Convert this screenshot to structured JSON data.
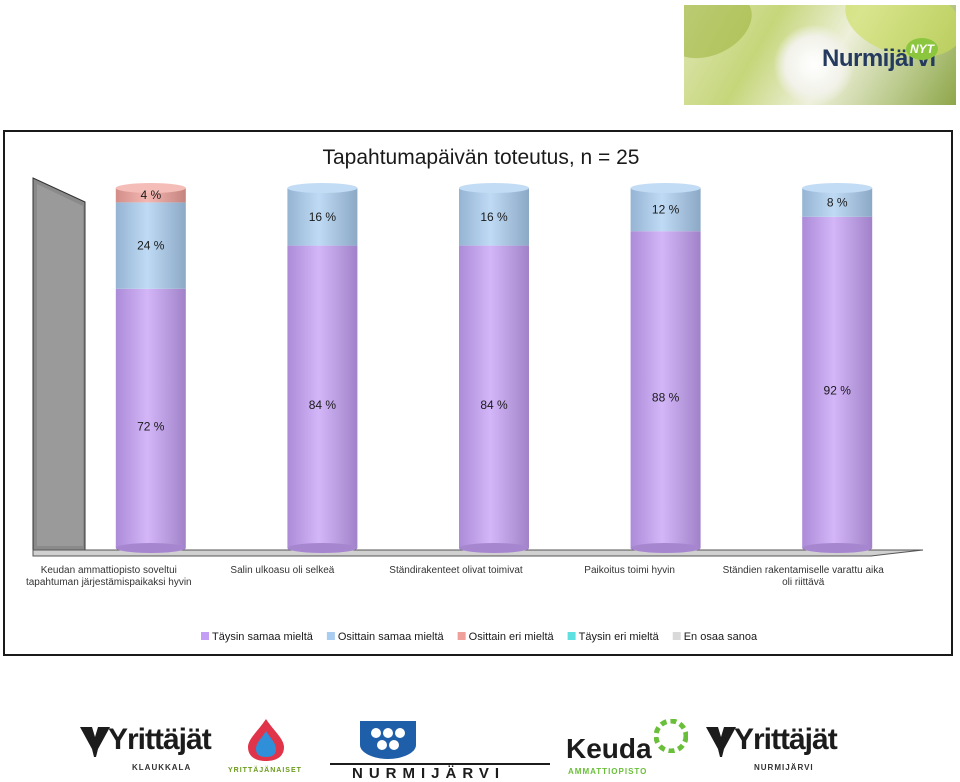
{
  "banner": {
    "title": "Nurmijärvi",
    "badge": "NYT"
  },
  "chart_data": {
    "type": "bar",
    "stacked": true,
    "percent": true,
    "title": "Tapahtumapäivän toteutus, n = 25",
    "categories": [
      [
        "Keudan ammattiopisto soveltui",
        "tapahtuman järjestämispaikaksi hyvin"
      ],
      [
        "Salin ulkoasu oli selkeä"
      ],
      [
        "Ständirakenteet olivat toimivat"
      ],
      [
        "Paikoitus toimi hyvin"
      ],
      [
        "Ständien rakentamiselle varattu aika",
        "oli riittävä"
      ]
    ],
    "series": [
      {
        "name": "Täysin samaa mieltä",
        "color": "#c49ef5",
        "values": [
          72,
          84,
          84,
          88,
          92
        ]
      },
      {
        "name": "Osittain samaa mieltä",
        "color": "#a9cdf0",
        "values": [
          24,
          16,
          16,
          12,
          8
        ]
      },
      {
        "name": "Osittain  eri mieltä",
        "color": "#f0a09a",
        "values": [
          4,
          0,
          0,
          0,
          0
        ]
      },
      {
        "name": "Täysin eri mieltä",
        "color": "#5fe0e0",
        "values": [
          0,
          0,
          0,
          0,
          0
        ]
      },
      {
        "name": "En osaa sanoa",
        "color": "#d9d9d9",
        "values": [
          0,
          0,
          0,
          0,
          0
        ]
      }
    ],
    "value_suffix": " %",
    "ylim": [
      0,
      100
    ],
    "legend_position": "bottom",
    "grid": false
  },
  "logos": {
    "yrittajat_klaukkala": {
      "name": "Yrittäjät",
      "sub": "KLAUKKALA"
    },
    "yrittajanaiset": {
      "sub": "YRITTÄJÄNAISET"
    },
    "nurmijarvi": {
      "name": "NURMIJÄRVI"
    },
    "keuda": {
      "name": "Keuda",
      "sub": "AMMATTIOPISTO"
    },
    "yrittajat_nurmijarvi": {
      "name": "Yrittäjät",
      "sub": "NURMIJÄRVI"
    }
  }
}
